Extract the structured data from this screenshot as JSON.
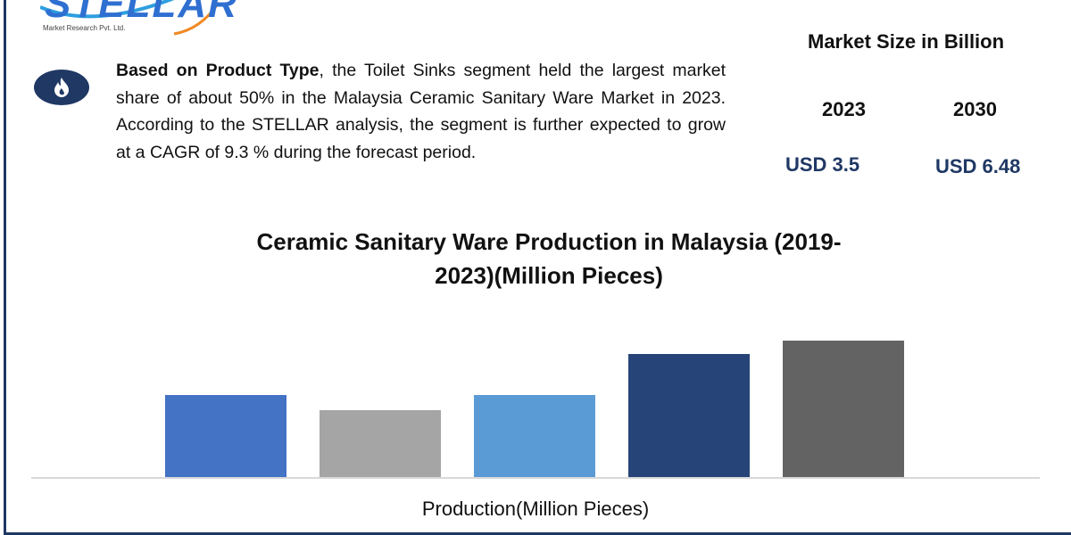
{
  "logo": {
    "name": "STELLAR",
    "subtitle": "Market Research Pvt. Ltd."
  },
  "summary": {
    "icon": "flame-icon",
    "bold_lead": "Based on Product Type",
    "text": ", the Toilet Sinks segment held the largest market share of about 50% in the Malaysia Ceramic Sanitary Ware Market in 2023.  According to the STELLAR analysis, the segment is further expected to grow at a CAGR of 9.3 % during the forecast period."
  },
  "market_size": {
    "title": "Market Size in Billion",
    "years": [
      "2023",
      "2030"
    ],
    "values": [
      "USD 3.5",
      "USD 6.48"
    ]
  },
  "colors": {
    "frame": "#1f3864",
    "accent": "#1f3864"
  },
  "chart_data": {
    "type": "bar",
    "title": "Ceramic Sanitary Ware Production in Malaysia (2019-2023)(Million Pieces)",
    "title_lines": [
      "Ceramic Sanitary Ware Production in Malaysia (2019-",
      "2023)(Million Pieces)"
    ],
    "xlabel": "Production(Million Pieces)",
    "ylabel": "",
    "categories": [
      "",
      "",
      "",
      "",
      ""
    ],
    "values": [
      92,
      75,
      92,
      138,
      153
    ],
    "ylim": [
      0,
      160
    ],
    "bar_colors": [
      "#4472c4",
      "#a5a5a5",
      "#5b9bd5",
      "#264478",
      "#636363"
    ],
    "grid": false,
    "legend": "none"
  }
}
